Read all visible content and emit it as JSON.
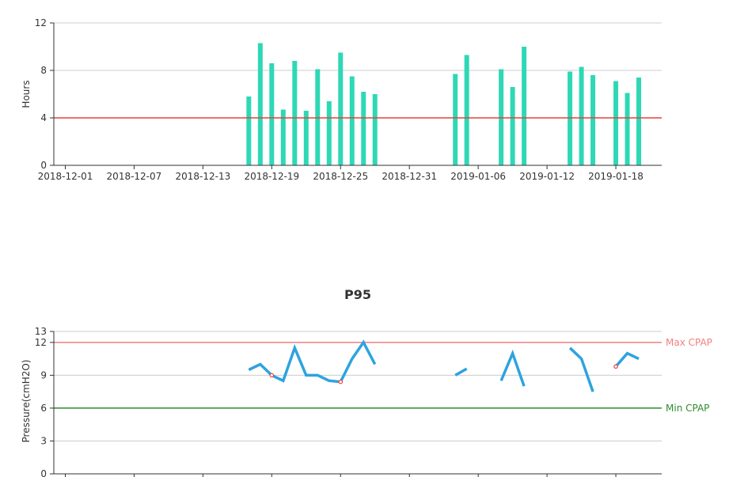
{
  "chart_data": [
    {
      "type": "bar",
      "title": "",
      "ylabel": "Hours",
      "ylim": [
        0,
        12
      ],
      "yticks": [
        "0",
        "4",
        "8",
        "12"
      ],
      "xlim": [
        "2018-11-30",
        "2019-01-22"
      ],
      "xticks": [
        "2018-12-01",
        "2018-12-07",
        "2018-12-13",
        "2018-12-19",
        "2018-12-25",
        "2018-12-31",
        "2019-01-06",
        "2019-01-12",
        "2019-01-18"
      ],
      "bar_color": "#2ed8b6",
      "grid": true,
      "reference_lines": [
        {
          "value": 4,
          "color": "#e8413a"
        }
      ],
      "x": [
        "2018-12-17",
        "2018-12-18",
        "2018-12-19",
        "2018-12-20",
        "2018-12-21",
        "2018-12-22",
        "2018-12-23",
        "2018-12-24",
        "2018-12-25",
        "2018-12-26",
        "2018-12-27",
        "2018-12-28",
        "2019-01-04",
        "2019-01-05",
        "2019-01-08",
        "2019-01-09",
        "2019-01-10",
        "2019-01-14",
        "2019-01-15",
        "2019-01-16",
        "2019-01-18",
        "2019-01-19",
        "2019-01-20"
      ],
      "values": [
        5.8,
        10.3,
        8.6,
        4.7,
        8.8,
        4.6,
        8.1,
        5.4,
        9.5,
        7.5,
        6.2,
        6.0,
        7.7,
        9.3,
        8.1,
        6.6,
        10.0,
        7.9,
        8.3,
        7.6,
        7.1,
        6.1,
        7.4
      ]
    },
    {
      "type": "line",
      "title": "P95",
      "ylabel": "Pressure(cmH2O)",
      "ylim": [
        0,
        13
      ],
      "yticks": [
        "0",
        "3",
        "6",
        "9",
        "12",
        "13"
      ],
      "xlim": [
        "2018-11-30",
        "2019-01-22"
      ],
      "tick_dates": [
        "2018-12-01",
        "2018-12-07",
        "2018-12-13",
        "2018-12-19",
        "2018-12-25",
        "2018-12-31",
        "2019-01-06",
        "2019-01-12",
        "2019-01-18"
      ],
      "line_color": "#2ea3e0",
      "grid": true,
      "reference_lines": [
        {
          "label": "Max CPAP",
          "value": 12,
          "color": "#f08080"
        },
        {
          "label": "Min CPAP",
          "value": 6,
          "color": "#2e8b2e"
        }
      ],
      "segments": [
        {
          "x": [
            "2018-12-17",
            "2018-12-18",
            "2018-12-19",
            "2018-12-20",
            "2018-12-21",
            "2018-12-22",
            "2018-12-23",
            "2018-12-24",
            "2018-12-25",
            "2018-12-26",
            "2018-12-27",
            "2018-12-28"
          ],
          "values": [
            9.5,
            10.0,
            9.0,
            8.5,
            11.5,
            9.0,
            9.0,
            8.5,
            8.4,
            10.5,
            12.0,
            10.0
          ]
        },
        {
          "x": [
            "2019-01-04",
            "2019-01-05"
          ],
          "values": [
            9.0,
            9.6
          ]
        },
        {
          "x": [
            "2019-01-08",
            "2019-01-09",
            "2019-01-10"
          ],
          "values": [
            8.5,
            11.0,
            8.0
          ]
        },
        {
          "x": [
            "2019-01-14",
            "2019-01-15",
            "2019-01-16"
          ],
          "values": [
            11.5,
            10.5,
            7.5
          ]
        },
        {
          "x": [
            "2019-01-18",
            "2019-01-19",
            "2019-01-20"
          ],
          "values": [
            9.8,
            11.0,
            10.5
          ]
        }
      ],
      "markers": [
        {
          "x": "2018-12-19",
          "value": 9.0
        },
        {
          "x": "2018-12-25",
          "value": 8.4
        },
        {
          "x": "2019-01-18",
          "value": 9.8
        }
      ]
    }
  ]
}
